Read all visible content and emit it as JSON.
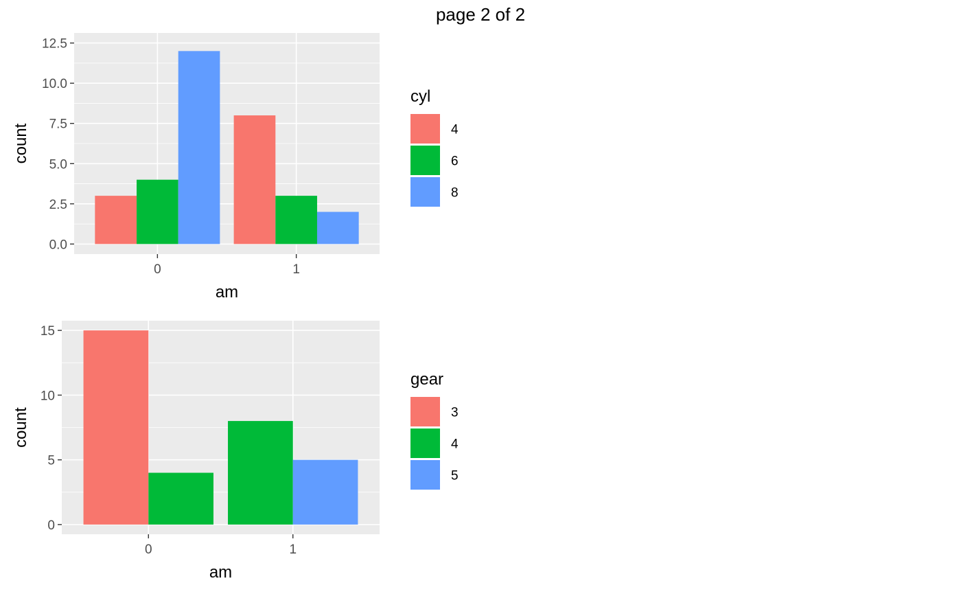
{
  "page": {
    "title": "page 2 of 2"
  },
  "chart_data": [
    {
      "type": "bar",
      "position": "dodge",
      "title": "",
      "xlabel": "am",
      "ylabel": "count",
      "categories": [
        "0",
        "1"
      ],
      "legend_title": "cyl",
      "series": [
        {
          "name": "4",
          "values": [
            3,
            8
          ]
        },
        {
          "name": "6",
          "values": [
            4,
            3
          ]
        },
        {
          "name": "8",
          "values": [
            12,
            2
          ]
        }
      ],
      "yticks": [
        "0.0",
        "2.5",
        "5.0",
        "7.5",
        "10.0",
        "12.5"
      ],
      "ylim": [
        0,
        12.5
      ],
      "grid": true,
      "legend_placement": "right"
    },
    {
      "type": "bar",
      "position": "dodge",
      "title": "",
      "xlabel": "am",
      "ylabel": "count",
      "categories": [
        "0",
        "1"
      ],
      "legend_title": "gear",
      "series": [
        {
          "name": "3",
          "values": [
            15,
            null
          ]
        },
        {
          "name": "4",
          "values": [
            4,
            8
          ]
        },
        {
          "name": "5",
          "values": [
            null,
            5
          ]
        }
      ],
      "yticks": [
        "0",
        "5",
        "10",
        "15"
      ],
      "ylim": [
        0,
        15
      ],
      "grid": true,
      "legend_placement": "right"
    }
  ],
  "colors": {
    "panel": "#EBEBEB",
    "grid": "#FFFFFF",
    "series": [
      "#F8766D",
      "#00BA38",
      "#619CFF"
    ]
  }
}
